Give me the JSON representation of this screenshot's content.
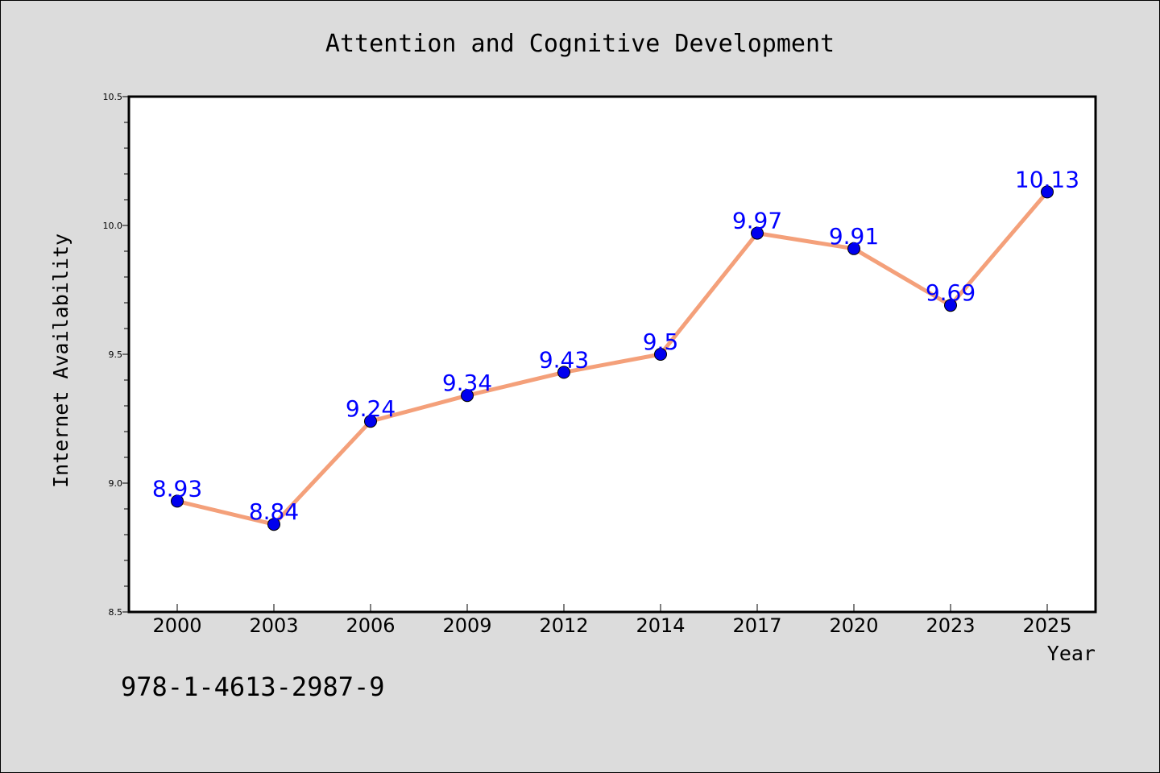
{
  "colors": {
    "line": "#f4a07a",
    "marker": "#0000ee",
    "label": "#0000ff",
    "background": "#dcdcdc",
    "plot_background": "#ffffff"
  },
  "footer_text": "978-1-4613-2987-9",
  "chart_data": {
    "type": "line",
    "title": "Attention and Cognitive Development",
    "xlabel": "Year",
    "ylabel": "Internet Availability",
    "categories": [
      "2000",
      "2003",
      "2006",
      "2009",
      "2012",
      "2014",
      "2017",
      "2020",
      "2023",
      "2025"
    ],
    "series": [
      {
        "values": [
          8.93,
          8.84,
          9.24,
          9.34,
          9.43,
          9.5,
          9.97,
          9.91,
          9.69,
          10.13
        ],
        "labels": [
          "8.93",
          "8.84",
          "9.24",
          "9.34",
          "9.43",
          "9.5",
          "9.97",
          "9.91",
          "9.69",
          "10.13"
        ]
      }
    ],
    "ylim": [
      8.5,
      10.5
    ],
    "yticks": [
      "8.5",
      "9.0",
      "9.5",
      "10.0",
      "10.5"
    ],
    "grid": false,
    "legend": "none"
  }
}
